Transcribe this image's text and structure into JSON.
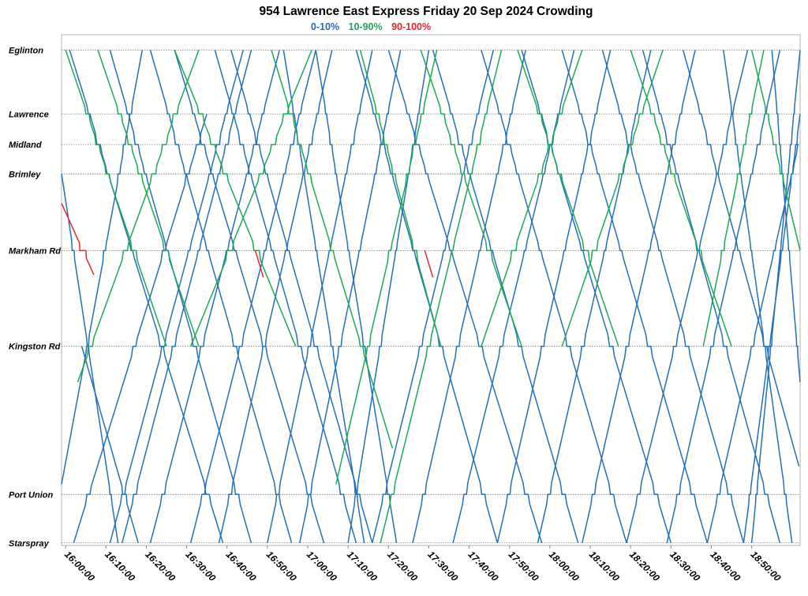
{
  "chart_data": {
    "type": "line",
    "title": "954 Lawrence East Express Friday 20 Sep 2024 Crowding",
    "legend": [
      {
        "label": "0-10%",
        "color": "#2270b8"
      },
      {
        "label": "10-90%",
        "color": "#1aaa55"
      },
      {
        "label": "90-100%",
        "color": "#e8242a"
      }
    ],
    "x_axis": {
      "type": "time",
      "range": [
        "15:59:00",
        "19:02:00"
      ],
      "tick_labels": [
        "16:00:00",
        "16:10:00",
        "16:20:00",
        "16:30:00",
        "16:40:00",
        "16:50:00",
        "17:00:00",
        "17:10:00",
        "17:20:00",
        "17:30:00",
        "17:40:00",
        "17:50:00",
        "18:00:00",
        "18:10:00",
        "18:20:00",
        "18:30:00",
        "18:40:00",
        "18:50:00"
      ]
    },
    "y_axis": {
      "stops": [
        {
          "name": "Eglinton",
          "km": 0.0
        },
        {
          "name": "Lawrence",
          "km": 2.5
        },
        {
          "name": "Midland",
          "km": 3.7
        },
        {
          "name": "Brimley",
          "km": 4.85
        },
        {
          "name": "Markham Rd",
          "km": 7.85
        },
        {
          "name": "Kingston Rd",
          "km": 11.6
        },
        {
          "name": "Port Union",
          "km": 17.4
        },
        {
          "name": "Starspray",
          "km": 19.3
        }
      ]
    },
    "grid": "horizontal dotted at stops",
    "trips_description": "eastbound trips descend from Eglinton to Starspray, westbound trips ascend; colour shows crowding band",
    "series": [
      {
        "name": "0-10%",
        "color": "#2270b8",
        "trips": [
          {
            "dir": "W",
            "start": "15:59:00",
            "from": 17.0,
            "to": 0.0,
            "dur": 20
          },
          {
            "dir": "E",
            "start": "15:59:00",
            "from": 4.85,
            "to": 19.3,
            "dur": 14
          },
          {
            "dir": "E",
            "start": "16:01:00",
            "from": 0.0,
            "to": 19.3,
            "dur": 38
          },
          {
            "dir": "W",
            "start": "16:02:00",
            "from": 19.3,
            "to": 2.5,
            "dur": 33
          },
          {
            "dir": "E",
            "start": "16:04:00",
            "from": 11.6,
            "to": 19.3,
            "dur": 14
          },
          {
            "dir": "W",
            "start": "16:11:00",
            "from": 19.3,
            "to": 0.0,
            "dur": 33
          },
          {
            "dir": "E",
            "start": "16:11:00",
            "from": 0.0,
            "to": 19.3,
            "dur": 35
          },
          {
            "dir": "W",
            "start": "16:14:00",
            "from": 19.3,
            "to": 0.0,
            "dur": 32
          },
          {
            "dir": "E",
            "start": "16:21:00",
            "from": 0.0,
            "to": 19.3,
            "dur": 35
          },
          {
            "dir": "W",
            "start": "16:21:00",
            "from": 19.3,
            "to": 0.0,
            "dur": 32
          },
          {
            "dir": "E",
            "start": "16:27:00",
            "from": 0.0,
            "to": 19.3,
            "dur": 37
          },
          {
            "dir": "W",
            "start": "16:31:00",
            "from": 19.3,
            "to": 0.0,
            "dur": 31
          },
          {
            "dir": "E",
            "start": "16:37:00",
            "from": 0.0,
            "to": 19.3,
            "dur": 35
          },
          {
            "dir": "W",
            "start": "16:38:00",
            "from": 19.3,
            "to": 0.0,
            "dur": 28
          },
          {
            "dir": "E",
            "start": "16:41:00",
            "from": 0.0,
            "to": 19.3,
            "dur": 35
          },
          {
            "dir": "W",
            "start": "16:50:00",
            "from": 19.3,
            "to": 0.0,
            "dur": 26
          },
          {
            "dir": "E",
            "start": "16:54:00",
            "from": 0.0,
            "to": 19.3,
            "dur": 20
          },
          {
            "dir": "W",
            "start": "16:58:00",
            "from": 19.3,
            "to": 0.0,
            "dur": 25
          },
          {
            "dir": "E",
            "start": "17:02:00",
            "from": 0.0,
            "to": 19.3,
            "dur": 20
          },
          {
            "dir": "W",
            "start": "17:10:00",
            "from": 19.3,
            "to": 0.0,
            "dur": 20
          },
          {
            "dir": "E",
            "start": "17:12:00",
            "from": 0.0,
            "to": 19.3,
            "dur": 35
          },
          {
            "dir": "W",
            "start": "17:16:00",
            "from": 19.3,
            "to": 0.0,
            "dur": 30
          },
          {
            "dir": "E",
            "start": "17:20:00",
            "from": 0.0,
            "to": 19.3,
            "dur": 38
          },
          {
            "dir": "W",
            "start": "17:26:00",
            "from": 19.3,
            "to": 0.0,
            "dur": 28
          },
          {
            "dir": "E",
            "start": "17:31:00",
            "from": 0.0,
            "to": 19.3,
            "dur": 36
          },
          {
            "dir": "W",
            "start": "17:36:00",
            "from": 19.3,
            "to": 0.0,
            "dur": 30
          },
          {
            "dir": "E",
            "start": "17:43:00",
            "from": 0.0,
            "to": 19.3,
            "dur": 36
          },
          {
            "dir": "W",
            "start": "17:47:00",
            "from": 19.3,
            "to": 0.0,
            "dur": 28
          },
          {
            "dir": "E",
            "start": "17:53:00",
            "from": 0.0,
            "to": 19.3,
            "dur": 37
          },
          {
            "dir": "W",
            "start": "17:57:00",
            "from": 19.3,
            "to": 0.0,
            "dur": 28
          },
          {
            "dir": "E",
            "start": "18:03:00",
            "from": 0.0,
            "to": 19.3,
            "dur": 36
          },
          {
            "dir": "W",
            "start": "18:08:00",
            "from": 19.3,
            "to": 0.0,
            "dur": 28
          },
          {
            "dir": "E",
            "start": "18:13:00",
            "from": 0.0,
            "to": 19.3,
            "dur": 35
          },
          {
            "dir": "W",
            "start": "18:19:00",
            "from": 19.3,
            "to": 0.0,
            "dur": 30
          },
          {
            "dir": "E",
            "start": "18:23:00",
            "from": 0.0,
            "to": 19.3,
            "dur": 34
          },
          {
            "dir": "W",
            "start": "18:29:00",
            "from": 19.3,
            "to": 0.0,
            "dur": 28
          },
          {
            "dir": "E",
            "start": "18:33:00",
            "from": 0.0,
            "to": 19.3,
            "dur": 34
          },
          {
            "dir": "W",
            "start": "18:39:00",
            "from": 19.3,
            "to": 0.0,
            "dur": 28
          },
          {
            "dir": "E",
            "start": "18:43:00",
            "from": 0.0,
            "to": 19.3,
            "dur": 17
          },
          {
            "dir": "W",
            "start": "18:48:00",
            "from": 19.3,
            "to": 2.5,
            "dur": 14
          },
          {
            "dir": "W",
            "start": "18:50:00",
            "from": 19.3,
            "to": 0.0,
            "dur": 12
          },
          {
            "dir": "E",
            "start": "18:55:00",
            "from": 0.0,
            "to": 13.0,
            "dur": 7
          }
        ]
      },
      {
        "name": "10-90%",
        "color": "#1aaa55",
        "trips": [
          {
            "dir": "E",
            "start": "16:00:00",
            "from": 0.0,
            "to": 11.6,
            "dur": 25
          },
          {
            "dir": "W",
            "start": "16:03:00",
            "from": 13.0,
            "to": 0.0,
            "dur": 30
          },
          {
            "dir": "E",
            "start": "16:08:00",
            "from": 0.0,
            "to": 11.6,
            "dur": 25
          },
          {
            "dir": "E",
            "start": "16:27:00",
            "from": 0.0,
            "to": 11.6,
            "dur": 30
          },
          {
            "dir": "W",
            "start": "16:31:00",
            "from": 11.6,
            "to": 0.0,
            "dur": 30
          },
          {
            "dir": "E",
            "start": "16:51:00",
            "from": 0.0,
            "to": 15.6,
            "dur": 30
          },
          {
            "dir": "W",
            "start": "17:07:00",
            "from": 17.0,
            "to": 0.0,
            "dur": 25
          },
          {
            "dir": "E",
            "start": "17:13:00",
            "from": 0.0,
            "to": 11.6,
            "dur": 20
          },
          {
            "dir": "W",
            "start": "17:18:00",
            "from": 19.3,
            "to": 0.0,
            "dur": 30
          },
          {
            "dir": "E",
            "start": "17:28:00",
            "from": 0.0,
            "to": 11.6,
            "dur": 25
          },
          {
            "dir": "W",
            "start": "17:43:00",
            "from": 11.6,
            "to": 0.0,
            "dur": 25
          },
          {
            "dir": "E",
            "start": "17:52:00",
            "from": 0.0,
            "to": 11.6,
            "dur": 25
          },
          {
            "dir": "W",
            "start": "18:03:00",
            "from": 11.6,
            "to": 0.0,
            "dur": 25
          },
          {
            "dir": "E",
            "start": "18:20:00",
            "from": 0.0,
            "to": 11.6,
            "dur": 25
          },
          {
            "dir": "W",
            "start": "18:38:00",
            "from": 11.6,
            "to": 0.0,
            "dur": 15
          },
          {
            "dir": "E",
            "start": "18:50:00",
            "from": 0.0,
            "to": 7.85,
            "dur": 12
          }
        ]
      },
      {
        "name": "90-100%",
        "color": "#e8242a",
        "trips": [
          {
            "dir": "E",
            "start": "15:59:00",
            "from": 6.0,
            "to": 8.8,
            "dur": 8
          },
          {
            "dir": "E",
            "start": "16:47:00",
            "from": 7.85,
            "to": 8.9,
            "dur": 2
          },
          {
            "dir": "E",
            "start": "17:29:00",
            "from": 7.85,
            "to": 8.9,
            "dur": 2
          }
        ]
      }
    ]
  }
}
